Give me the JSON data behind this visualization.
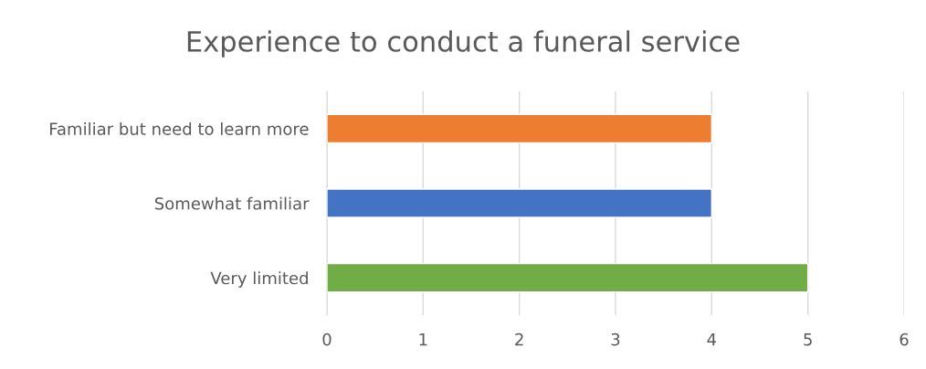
{
  "chart_data": {
    "type": "bar",
    "orientation": "horizontal",
    "title": "Experience to conduct a funeral service",
    "categories": [
      "Familiar but need to learn more",
      "Somewhat familiar",
      "Very limited"
    ],
    "values": [
      4,
      4,
      5
    ],
    "colors": [
      "#ed7d31",
      "#4472c4",
      "#70ad47"
    ],
    "xlim": [
      0,
      6
    ],
    "xticks": [
      0,
      1,
      2,
      3,
      4,
      5,
      6
    ],
    "grid": "x"
  }
}
